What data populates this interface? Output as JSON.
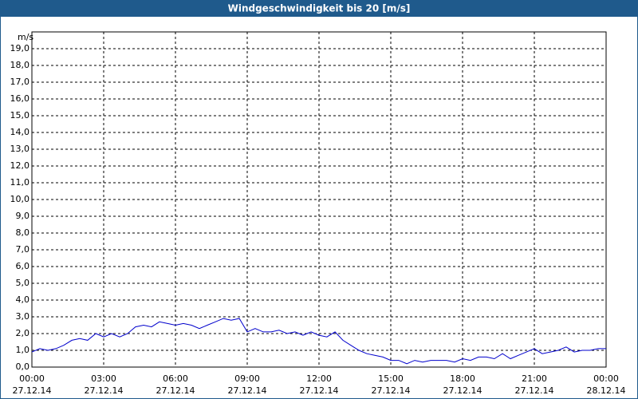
{
  "chart_data": {
    "type": "line",
    "title": "Windgeschwindigkeit bis 20 [m/s]",
    "y_label": "m/s",
    "x": [
      0,
      0.33,
      0.67,
      1,
      1.33,
      1.67,
      2,
      2.33,
      2.67,
      3,
      3.33,
      3.67,
      4,
      4.33,
      4.67,
      5,
      5.33,
      5.67,
      6,
      6.33,
      6.67,
      7,
      7.33,
      7.67,
      8,
      8.33,
      8.67,
      9,
      9.33,
      9.67,
      10,
      10.33,
      10.67,
      11,
      11.33,
      11.67,
      12,
      12.33,
      12.67,
      13,
      13.33,
      13.67,
      14,
      14.33,
      14.67,
      15,
      15.33,
      15.67,
      16,
      16.33,
      16.67,
      17,
      17.33,
      17.67,
      18,
      18.33,
      18.67,
      19,
      19.33,
      19.67,
      20,
      20.33,
      20.67,
      21,
      21.33,
      21.67,
      22,
      22.33,
      22.67,
      23,
      23.33,
      23.67,
      24
    ],
    "series": [
      {
        "name": "Windgeschwindigkeit",
        "color": "#0000cc",
        "values": [
          0.9,
          1.1,
          1.0,
          1.1,
          1.3,
          1.6,
          1.7,
          1.6,
          2.0,
          1.8,
          2.0,
          1.8,
          2.0,
          2.4,
          2.5,
          2.4,
          2.7,
          2.6,
          2.5,
          2.6,
          2.5,
          2.3,
          2.5,
          2.7,
          2.9,
          2.8,
          2.9,
          2.1,
          2.3,
          2.1,
          2.1,
          2.2,
          2.0,
          2.1,
          1.9,
          2.1,
          1.9,
          1.8,
          2.1,
          1.6,
          1.3,
          1.0,
          0.8,
          0.7,
          0.6,
          0.4,
          0.4,
          0.2,
          0.4,
          0.3,
          0.4,
          0.4,
          0.4,
          0.3,
          0.5,
          0.4,
          0.6,
          0.6,
          0.5,
          0.8,
          0.5,
          0.7,
          0.9,
          1.1,
          0.8,
          0.9,
          1.0,
          1.2,
          0.9,
          1.0,
          1.0,
          1.1,
          1.1
        ]
      }
    ],
    "xlim": [
      0,
      24
    ],
    "xticks": [
      {
        "value": 0,
        "label": "00:00"
      },
      {
        "value": 3,
        "label": "03:00"
      },
      {
        "value": 6,
        "label": "06:00"
      },
      {
        "value": 9,
        "label": "09:00"
      },
      {
        "value": 12,
        "label": "12:00"
      },
      {
        "value": 15,
        "label": "15:00"
      },
      {
        "value": 18,
        "label": "18:00"
      },
      {
        "value": 21,
        "label": "21:00"
      },
      {
        "value": 24,
        "label": "00:00"
      }
    ],
    "xtick_dates": [
      "27.12.14",
      "27.12.14",
      "27.12.14",
      "27.12.14",
      "27.12.14",
      "27.12.14",
      "27.12.14",
      "27.12.14",
      "28.12.14"
    ],
    "ylim": [
      0,
      20
    ],
    "yticks": [
      {
        "value": 0,
        "label": "0,0"
      },
      {
        "value": 1,
        "label": "1,0"
      },
      {
        "value": 2,
        "label": "2,0"
      },
      {
        "value": 3,
        "label": "3,0"
      },
      {
        "value": 4,
        "label": "4,0"
      },
      {
        "value": 5,
        "label": "5,0"
      },
      {
        "value": 6,
        "label": "6,0"
      },
      {
        "value": 7,
        "label": "7,0"
      },
      {
        "value": 8,
        "label": "8,0"
      },
      {
        "value": 9,
        "label": "9,0"
      },
      {
        "value": 10,
        "label": "10,0"
      },
      {
        "value": 11,
        "label": "11,0"
      },
      {
        "value": 12,
        "label": "12,0"
      },
      {
        "value": 13,
        "label": "13,0"
      },
      {
        "value": 14,
        "label": "14,0"
      },
      {
        "value": 15,
        "label": "15,0"
      },
      {
        "value": 16,
        "label": "16,0"
      },
      {
        "value": 17,
        "label": "17,0"
      },
      {
        "value": 18,
        "label": "18,0"
      },
      {
        "value": 19,
        "label": "19,0"
      }
    ],
    "grid": true
  }
}
